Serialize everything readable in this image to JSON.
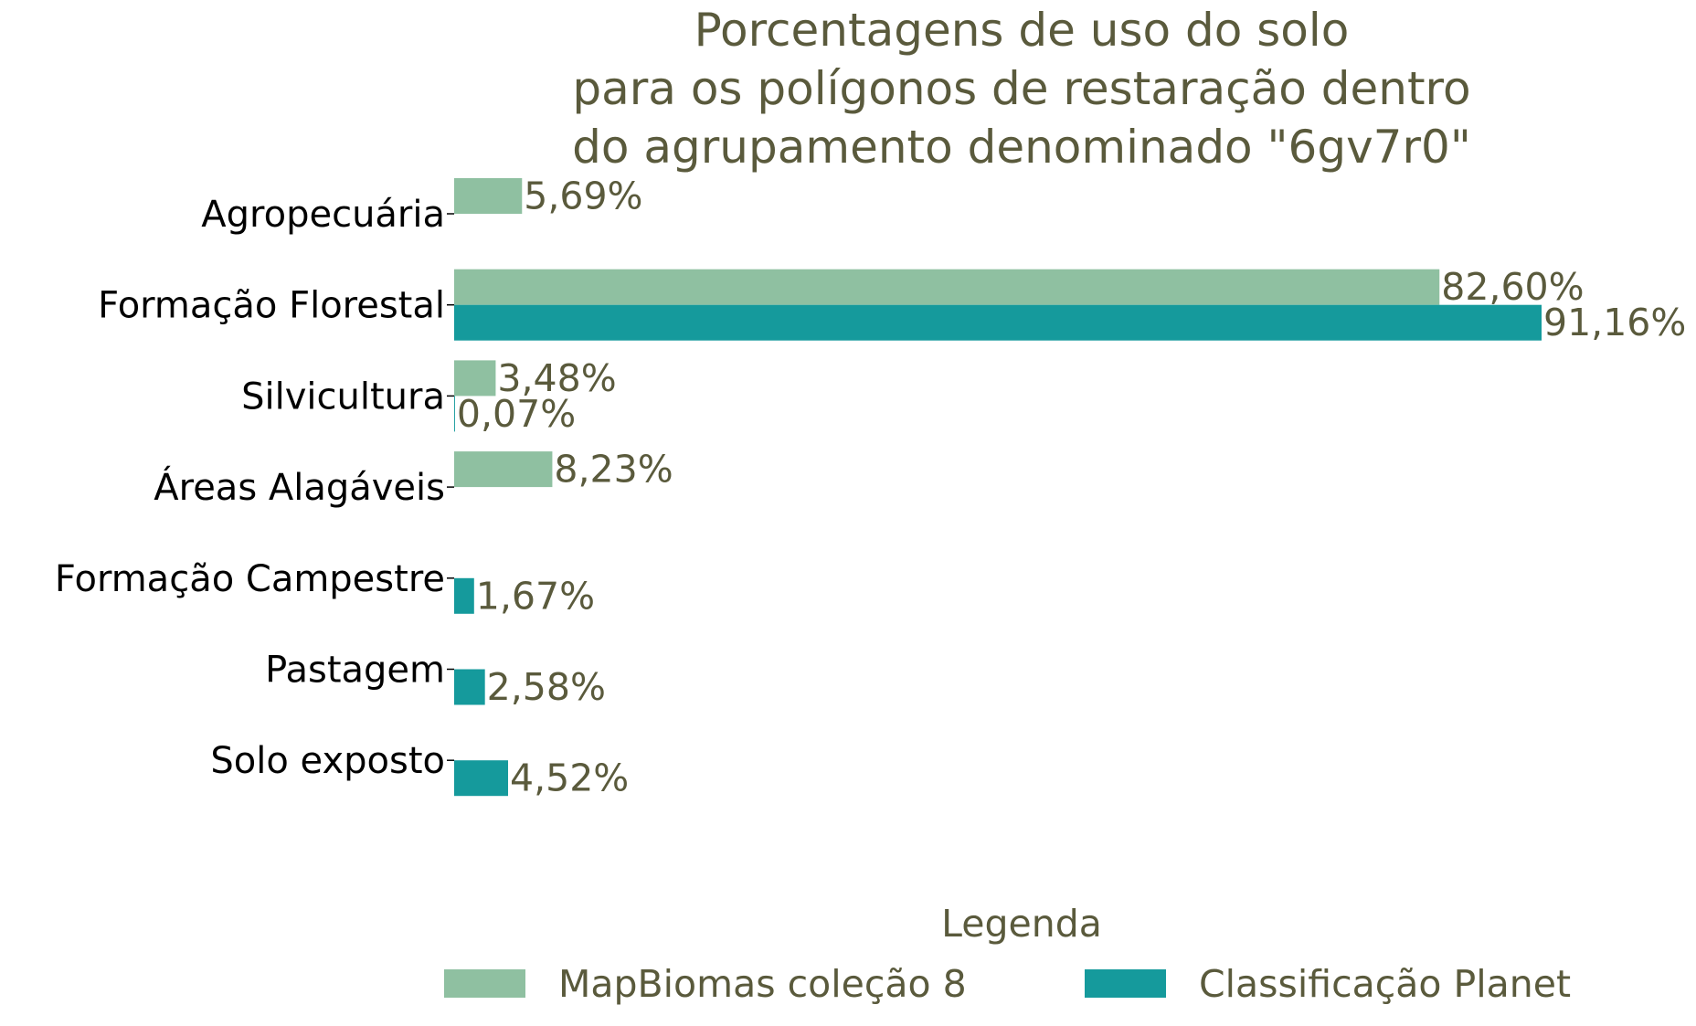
{
  "chart_data": {
    "type": "bar",
    "orientation": "horizontal",
    "title": "Porcentagens de uso do solo\npara os polígonos de restaração dentro\ndo agrupamento denominado \"6gv7r0\"",
    "categories": [
      "Agropecuária",
      "Formação Florestal",
      "Silvicultura",
      "Áreas Alagáveis",
      "Formação Campestre",
      "Pastagem",
      "Solo exposto"
    ],
    "series": [
      {
        "name": "MapBiomas coleção 8",
        "color": "#8fc0a1",
        "values": [
          5.69,
          82.6,
          3.48,
          8.23,
          null,
          null,
          null
        ],
        "labels": [
          "5,69%",
          "82,60%",
          "3,48%",
          "8,23%",
          null,
          null,
          null
        ]
      },
      {
        "name": "Classificação Planet",
        "color": "#159a9c",
        "values": [
          null,
          91.16,
          0.07,
          null,
          1.67,
          2.58,
          4.52
        ],
        "labels": [
          null,
          "91,16%",
          "0,07%",
          null,
          "1,67%",
          "2,58%",
          "4,52%"
        ]
      }
    ],
    "xlim": [
      0,
      91.16
    ],
    "grid": false,
    "legend": {
      "title": "Legenda",
      "position": "bottom"
    }
  }
}
